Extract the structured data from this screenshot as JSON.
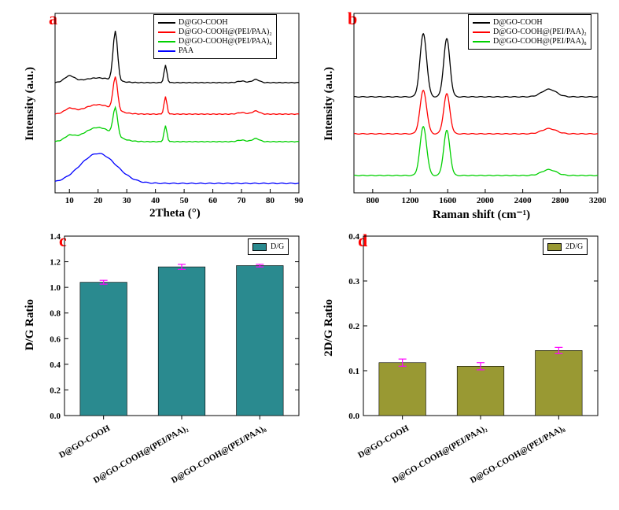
{
  "panel_a": {
    "label": "a",
    "label_color": "#ff0000",
    "xlabel": "2Theta (°)",
    "ylabel": "Intensity (a.u.)",
    "xlim": [
      5,
      90
    ],
    "xticks": [
      10,
      20,
      30,
      40,
      50,
      60,
      70,
      80,
      90
    ],
    "colors": {
      "s1": "#000000",
      "s2": "#ff0000",
      "s3": "#00d000",
      "s4": "#0000ff"
    },
    "legend": [
      {
        "label": "D@GO-COOH",
        "color": "#000000"
      },
      {
        "label": "D@GO-COOH@(PEI/PAA)₂",
        "color": "#ff0000"
      },
      {
        "label": "D@GO-COOH@(PEI/PAA)₈",
        "color": "#00d000"
      },
      {
        "label": "PAA",
        "color": "#0000ff"
      }
    ]
  },
  "panel_b": {
    "label": "b",
    "label_color": "#ff0000",
    "xlabel": "Raman shift (cm⁻¹)",
    "ylabel": "Intensity (a.u.)",
    "xlim": [
      600,
      3200
    ],
    "xticks": [
      800,
      1200,
      1600,
      2000,
      2400,
      2800,
      3200
    ],
    "legend": [
      {
        "label": "D@GO-COOH",
        "color": "#000000"
      },
      {
        "label": "D@GO-COOH@(PEI/PAA)₂",
        "color": "#ff0000"
      },
      {
        "label": "D@GO-COOH@(PEI/PAA)₈",
        "color": "#00d000"
      }
    ]
  },
  "panel_c": {
    "label": "c",
    "label_color": "#ff0000",
    "ylabel": "D/G Ratio",
    "ylim": [
      0,
      1.4
    ],
    "yticks": [
      0.0,
      0.2,
      0.4,
      0.6,
      0.8,
      1.0,
      1.2,
      1.4
    ],
    "bar_color": "#2a8a8f",
    "error_color": "#ff00ff",
    "legend_label": "D/G",
    "categories": [
      "D@GO-COOH",
      "D@GO-COOH@(PEI/PAA)₂",
      "D@GO-COOH@(PEI/PAA)₈"
    ],
    "values": [
      1.04,
      1.16,
      1.17
    ],
    "errors": [
      0.015,
      0.02,
      0.01
    ]
  },
  "panel_d": {
    "label": "d",
    "label_color": "#ff0000",
    "ylabel": "2D/G Ratio",
    "ylim": [
      0,
      0.4
    ],
    "yticks": [
      0.0,
      0.1,
      0.2,
      0.3,
      0.4
    ],
    "bar_color": "#999933",
    "error_color": "#ff00ff",
    "legend_label": "2D/G",
    "categories": [
      "D@GO-COOH",
      "D@GO-COOH@(PEI/PAA)₂",
      "D@GO-COOH@(PEI/PAA)₈"
    ],
    "values": [
      0.118,
      0.11,
      0.145
    ],
    "errors": [
      0.008,
      0.008,
      0.007
    ]
  }
}
